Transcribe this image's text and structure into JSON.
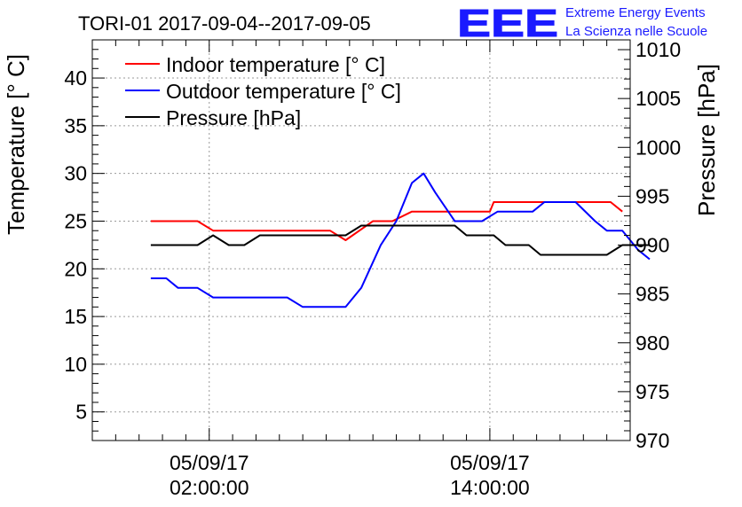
{
  "chart_data": {
    "type": "line",
    "title": "TORI-01 2017-09-04--2017-09-05",
    "ylabel_left": "Temperature [° C]",
    "ylabel_right": "Pressure [hPa]",
    "xlabel": "",
    "grid": true,
    "legend_position": "top-left",
    "x_range": [
      "2017-09-04 21:00",
      "2017-09-05 20:00"
    ],
    "ylim_left": [
      2,
      44
    ],
    "ylim_right": [
      970,
      1011
    ],
    "x_ticks": [
      {
        "x": "2017-09-05 02:00",
        "date": "05/09/17",
        "time": "02:00:00"
      },
      {
        "x": "2017-09-05 14:00",
        "date": "05/09/17",
        "time": "14:00:00"
      }
    ],
    "y_ticks_left": [
      "5",
      "10",
      "15",
      "20",
      "25",
      "30",
      "35",
      "40"
    ],
    "y_ticks_right": [
      "970",
      "975",
      "980",
      "985",
      "990",
      "995",
      "1000",
      "1005",
      "1010"
    ],
    "series": [
      {
        "name": "Indoor temperature [° C]",
        "axis": "left",
        "color": "#ff0000",
        "points": [
          [
            "2017-09-04 23:30",
            25
          ],
          [
            "2017-09-05 01:30",
            25
          ],
          [
            "2017-09-05 02:10",
            24
          ],
          [
            "2017-09-05 03:00",
            24
          ],
          [
            "2017-09-05 06:00",
            24
          ],
          [
            "2017-09-05 07:10",
            24
          ],
          [
            "2017-09-05 07:50",
            23
          ],
          [
            "2017-09-05 09:00",
            25
          ],
          [
            "2017-09-05 09:50",
            25
          ],
          [
            "2017-09-05 10:40",
            26
          ],
          [
            "2017-09-05 14:00",
            26
          ],
          [
            "2017-09-05 14:10",
            27
          ],
          [
            "2017-09-05 18:00",
            27
          ],
          [
            "2017-09-05 19:10",
            27
          ],
          [
            "2017-09-05 19:40",
            26
          ]
        ]
      },
      {
        "name": "Outdoor temperature [° C]",
        "axis": "left",
        "color": "#0000ff",
        "points": [
          [
            "2017-09-04 23:30",
            19
          ],
          [
            "2017-09-05 00:10",
            19
          ],
          [
            "2017-09-05 00:40",
            18
          ],
          [
            "2017-09-05 01:30",
            18
          ],
          [
            "2017-09-05 02:10",
            17
          ],
          [
            "2017-09-05 03:30",
            17
          ],
          [
            "2017-09-05 05:20",
            17
          ],
          [
            "2017-09-05 06:00",
            16
          ],
          [
            "2017-09-05 07:50",
            16
          ],
          [
            "2017-09-05 08:30",
            18
          ],
          [
            "2017-09-05 09:20",
            22.5
          ],
          [
            "2017-09-05 10:00",
            25
          ],
          [
            "2017-09-05 10:40",
            29
          ],
          [
            "2017-09-05 11:10",
            30
          ],
          [
            "2017-09-05 11:40",
            28
          ],
          [
            "2017-09-05 12:30",
            25
          ],
          [
            "2017-09-05 13:00",
            25
          ],
          [
            "2017-09-05 13:40",
            25
          ],
          [
            "2017-09-05 14:20",
            26
          ],
          [
            "2017-09-05 15:10",
            26
          ],
          [
            "2017-09-05 15:50",
            26
          ],
          [
            "2017-09-05 16:20",
            27
          ],
          [
            "2017-09-05 17:40",
            27
          ],
          [
            "2017-09-05 18:30",
            25
          ],
          [
            "2017-09-05 19:00",
            24
          ],
          [
            "2017-09-05 19:40",
            24
          ],
          [
            "2017-09-05 20:20",
            22
          ],
          [
            "2017-09-05 20:50",
            21
          ]
        ]
      },
      {
        "name": "Pressure [hPa]",
        "axis": "right",
        "color": "#000000",
        "points": [
          [
            "2017-09-04 23:30",
            990
          ],
          [
            "2017-09-05 01:30",
            990
          ],
          [
            "2017-09-05 02:10",
            991
          ],
          [
            "2017-09-05 02:50",
            990
          ],
          [
            "2017-09-05 03:30",
            990
          ],
          [
            "2017-09-05 04:10",
            991
          ],
          [
            "2017-09-05 07:50",
            991
          ],
          [
            "2017-09-05 08:30",
            992
          ],
          [
            "2017-09-05 12:30",
            992
          ],
          [
            "2017-09-05 13:00",
            991
          ],
          [
            "2017-09-05 14:10",
            991
          ],
          [
            "2017-09-05 14:40",
            990
          ],
          [
            "2017-09-05 15:40",
            990
          ],
          [
            "2017-09-05 16:10",
            989
          ],
          [
            "2017-09-05 18:30",
            989
          ],
          [
            "2017-09-05 19:00",
            989
          ],
          [
            "2017-09-05 19:40",
            990
          ],
          [
            "2017-09-05 20:50",
            990
          ]
        ]
      }
    ]
  },
  "branding": {
    "logo_text": "EEE",
    "line1": "Extreme Energy Events",
    "line2": "La Scienza nelle Scuole",
    "color": "#1a1aff"
  }
}
